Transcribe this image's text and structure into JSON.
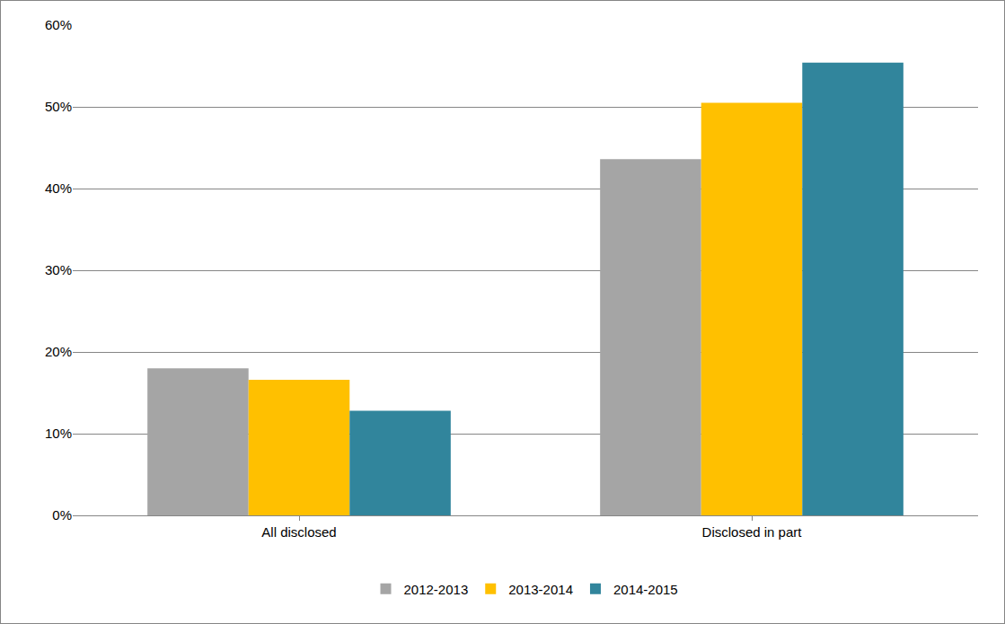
{
  "chart_data": {
    "type": "bar",
    "categories": [
      "All disclosed",
      "Disclosed in part"
    ],
    "series": [
      {
        "name": "2012-2013",
        "color": "#A5A5A5",
        "values": [
          18.0,
          43.6
        ]
      },
      {
        "name": "2013-2014",
        "color": "#FFC000",
        "values": [
          16.6,
          50.5
        ]
      },
      {
        "name": "2014-2015",
        "color": "#31859C",
        "values": [
          12.8,
          55.4
        ]
      }
    ],
    "ylim": [
      0,
      60
    ],
    "yticks": [
      {
        "value": 0,
        "label": "0%"
      },
      {
        "value": 10,
        "label": "10%"
      },
      {
        "value": 20,
        "label": "20%"
      },
      {
        "value": 30,
        "label": "30%"
      },
      {
        "value": 40,
        "label": "40%"
      },
      {
        "value": 50,
        "label": "50%"
      },
      {
        "value": 60,
        "label": "60%"
      }
    ],
    "grid": true,
    "legend": "bottom"
  }
}
